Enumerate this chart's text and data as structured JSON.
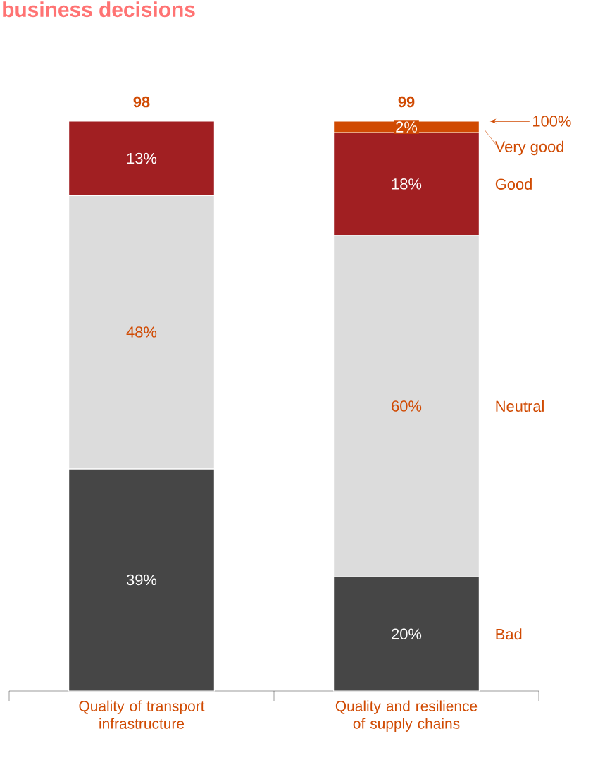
{
  "chart_data": {
    "type": "bar",
    "stacked": true,
    "title": "business decisions",
    "categories": [
      "Quality of transport infrastructure",
      "Quality and resilience of supply chains"
    ],
    "series": [
      {
        "name": "Bad",
        "color": "#464646",
        "values": [
          39,
          20
        ],
        "value_labels": [
          "39%",
          "20%"
        ]
      },
      {
        "name": "Neutral",
        "color": "#dcdcdc",
        "values": [
          48,
          60
        ],
        "value_labels": [
          "48%",
          "60%"
        ]
      },
      {
        "name": "Good",
        "color": "#a11f22",
        "values": [
          13,
          18
        ],
        "value_labels": [
          "13%",
          "18%"
        ]
      },
      {
        "name": "Very good",
        "color": "#d04a02",
        "values": [
          null,
          2
        ],
        "value_labels": [
          null,
          "2%"
        ]
      }
    ],
    "totals": [
      "98",
      "99"
    ],
    "annotations": [
      "100%"
    ],
    "ylim": [
      0,
      100
    ],
    "tick_labels": "x",
    "legend": "right"
  }
}
